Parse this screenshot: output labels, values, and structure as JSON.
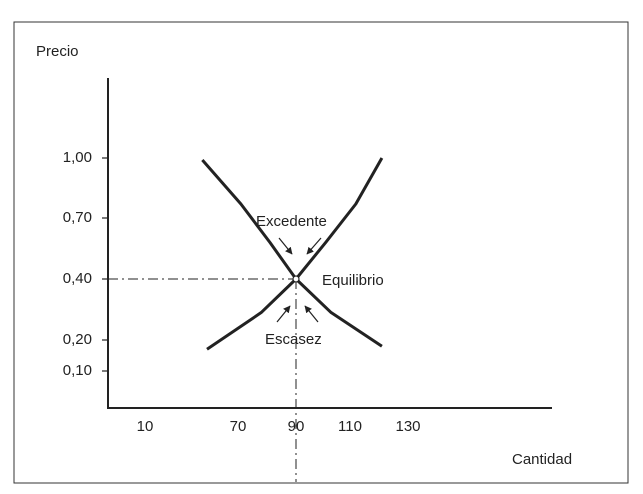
{
  "chart_data": {
    "type": "line",
    "ylabel": "Precio",
    "xlabel": "Cantidad",
    "xlim": [
      0,
      150
    ],
    "ylim": [
      0,
      1.3
    ],
    "xticks": [
      10,
      70,
      90,
      110,
      130
    ],
    "yticks": [
      {
        "value": 0.1,
        "label": "0,10"
      },
      {
        "value": 0.2,
        "label": "0,20"
      },
      {
        "value": 0.4,
        "label": "0,40"
      },
      {
        "value": 0.7,
        "label": "0,70"
      },
      {
        "value": 1,
        "label": "1,00"
      }
    ],
    "series": [
      {
        "color": "#222222",
        "x": [
          47,
          71,
          81,
          90,
          103,
          121
        ],
        "values": [
          0.99,
          0.77,
          0.58,
          0.4,
          0.29,
          0.18
        ]
      },
      {
        "color": "#222222",
        "x": [
          50,
          78,
          90,
          101,
          112,
          121
        ],
        "values": [
          0.17,
          0.29,
          0.4,
          0.58,
          0.77,
          1.0
        ]
      }
    ],
    "equilibrium": {
      "x": 90,
      "y": 0.4
    },
    "annotations": [
      "Excedente",
      "Equilibrio",
      "Escasez"
    ]
  }
}
